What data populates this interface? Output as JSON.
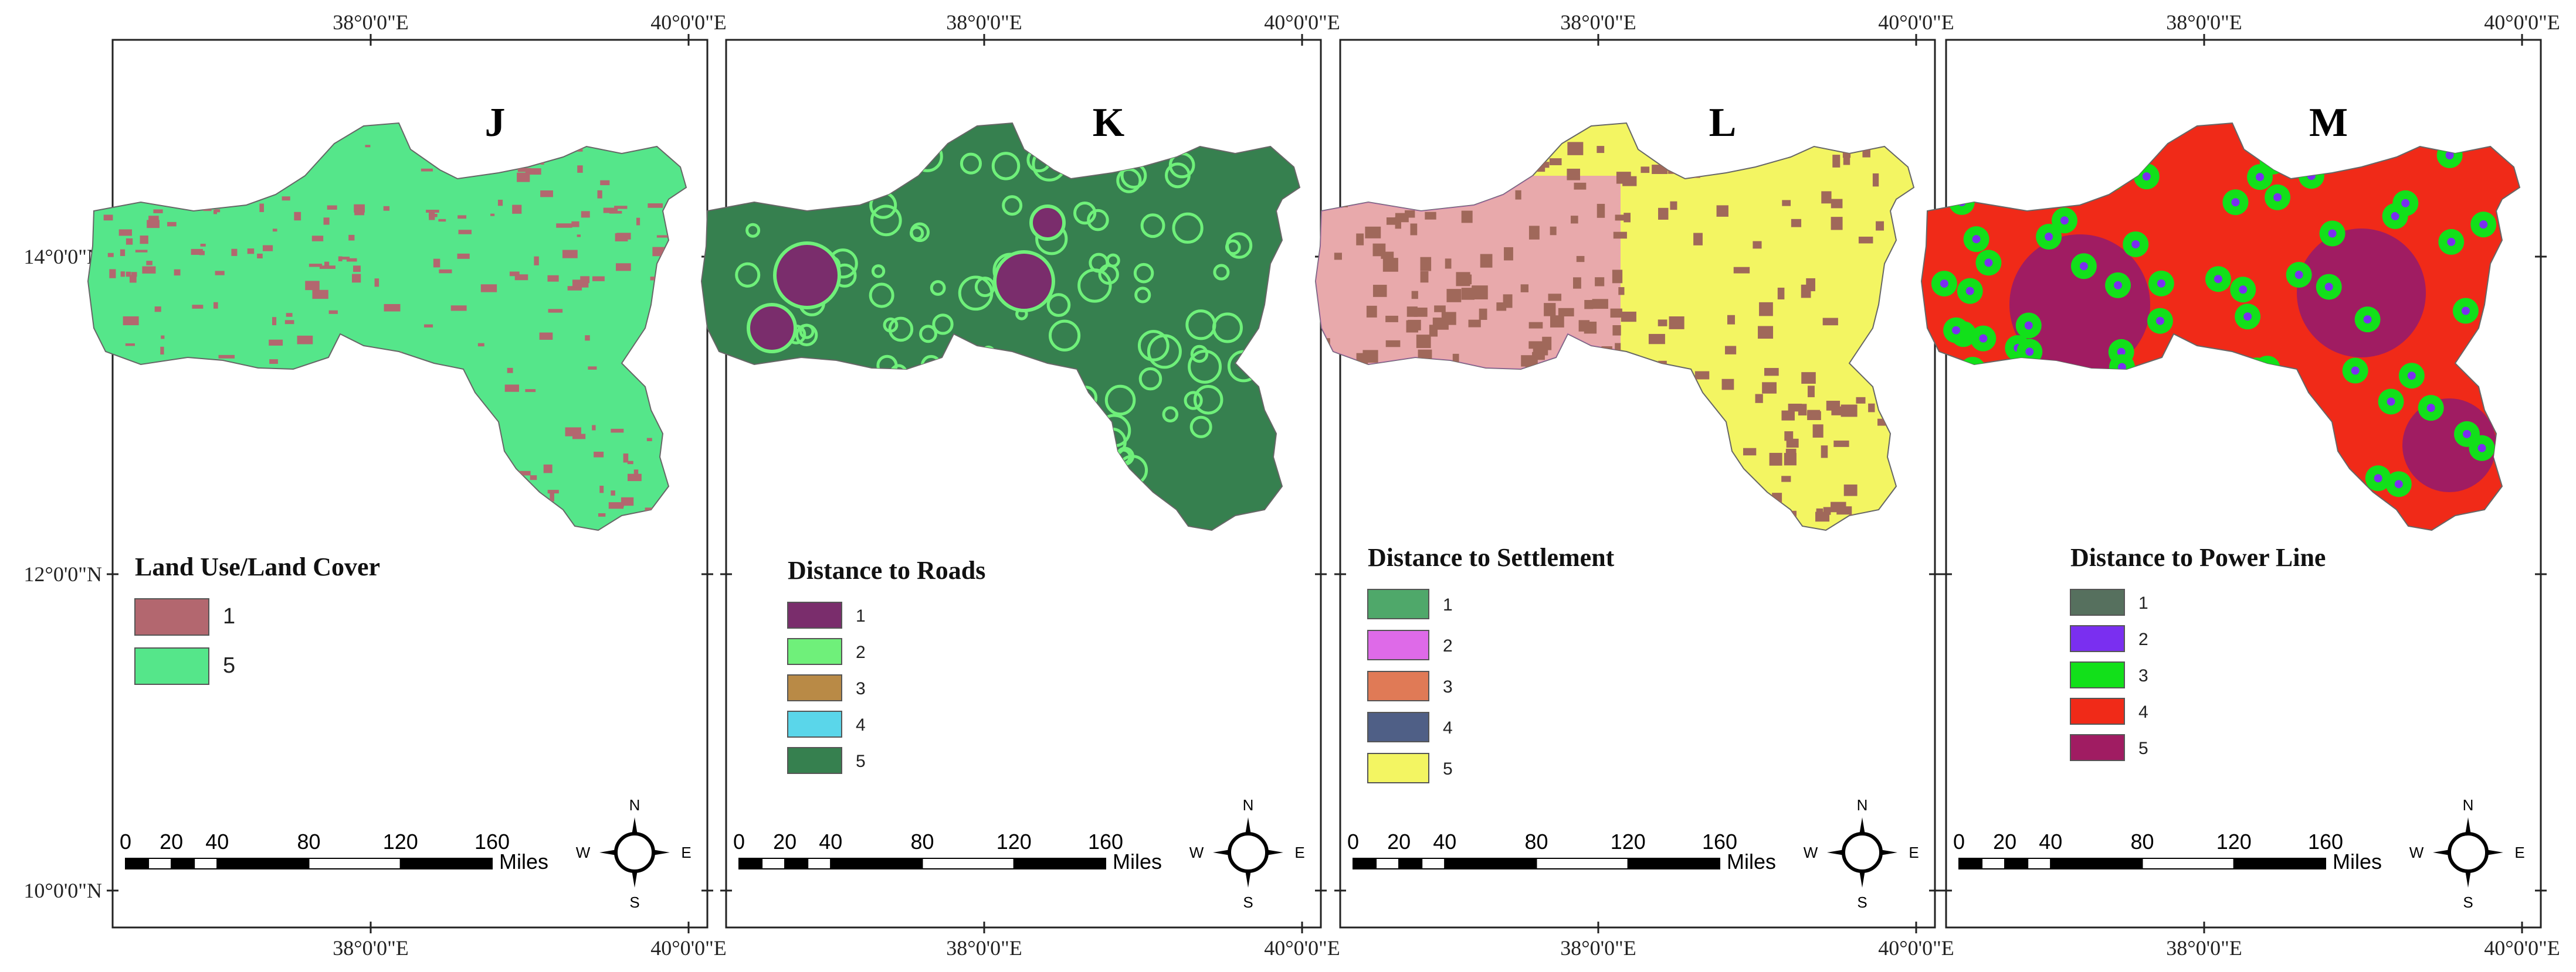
{
  "coords": {
    "lon_west": "38°0'0\"E",
    "lon_east": "40°0'0\"E",
    "lat_14": "14°0'0\"N",
    "lat_12": "12°0'0\"N",
    "lat_10": "10°0'0\"N"
  },
  "panels": [
    {
      "letter": "J",
      "legend_title": "Land Use/Land Cover",
      "legend_items": [
        {
          "label": "1",
          "color": "#b3676f"
        },
        {
          "label": "5",
          "color": "#55e68a"
        }
      ],
      "map_colors": {
        "base": "#55e68a",
        "accent": "#b3676f"
      }
    },
    {
      "letter": "K",
      "legend_title": "Distance to Roads",
      "legend_items": [
        {
          "label": "1",
          "color": "#7a2d6c"
        },
        {
          "label": "2",
          "color": "#6ff07a"
        },
        {
          "label": "3",
          "color": "#b98a46"
        },
        {
          "label": "4",
          "color": "#5ad6ea"
        },
        {
          "label": "5",
          "color": "#36804f"
        }
      ],
      "map_colors": {
        "base": "#36804f",
        "accent": "#6ff07a",
        "patch": "#7a2d6c"
      }
    },
    {
      "letter": "L",
      "legend_title": "Distance to Settlement",
      "legend_items": [
        {
          "label": "1",
          "color": "#4fa86a"
        },
        {
          "label": "2",
          "color": "#de6ae8"
        },
        {
          "label": "3",
          "color": "#e07a56"
        },
        {
          "label": "4",
          "color": "#4f5f86"
        },
        {
          "label": "5",
          "color": "#f3f562"
        }
      ],
      "map_colors": {
        "base": "#f3f562",
        "accent": "#a0685a",
        "patch": "#de6ae8"
      }
    },
    {
      "letter": "M",
      "legend_title": "Distance to Power Line",
      "legend_items": [
        {
          "label": "1",
          "color": "#56705e"
        },
        {
          "label": "2",
          "color": "#7a2ff0"
        },
        {
          "label": "3",
          "color": "#12e01a"
        },
        {
          "label": "4",
          "color": "#f02a18"
        },
        {
          "label": "5",
          "color": "#a01c62"
        }
      ],
      "map_colors": {
        "base": "#f02a18",
        "accent": "#12e01a",
        "dot": "#7a2ff0",
        "patch": "#a01c62"
      }
    }
  ],
  "scalebar": {
    "ticks": [
      "0",
      "20",
      "40",
      "80",
      "120",
      "160"
    ],
    "unit": "Miles"
  },
  "north_arrow": {
    "n": "N",
    "s": "S",
    "e": "E",
    "w": "W"
  }
}
